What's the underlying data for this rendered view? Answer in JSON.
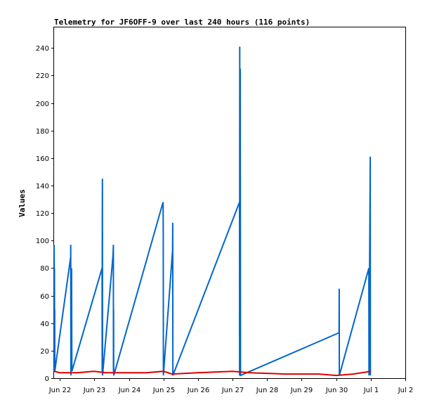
{
  "chart_data": {
    "type": "line",
    "title": "Telemetry for JF6OFF-9 over last 240 hours (116 points)",
    "xlabel": "",
    "ylabel": "Values",
    "xlim": [
      "2024-06-21T20:00",
      "2024-07-02T00:00"
    ],
    "ylim": [
      0,
      255
    ],
    "x_ticks": [
      {
        "label": "Jun 22",
        "t": "2024-06-22T00:00"
      },
      {
        "label": "Jun 23",
        "t": "2024-06-23T00:00"
      },
      {
        "label": "Jun 24",
        "t": "2024-06-24T00:00"
      },
      {
        "label": "Jun 25",
        "t": "2024-06-25T00:00"
      },
      {
        "label": "Jun 26",
        "t": "2024-06-26T00:00"
      },
      {
        "label": "Jun 27",
        "t": "2024-06-27T00:00"
      },
      {
        "label": "Jun 28",
        "t": "2024-06-28T00:00"
      },
      {
        "label": "Jun 29",
        "t": "2024-06-29T00:00"
      },
      {
        "label": "Jun 30",
        "t": "2024-06-30T00:00"
      },
      {
        "label": "Jul 1",
        "t": "2024-07-01T00:00"
      },
      {
        "label": "Jul 2",
        "t": "2024-07-02T00:00"
      }
    ],
    "y_ticks": [
      0,
      20,
      40,
      60,
      80,
      100,
      120,
      140,
      160,
      180,
      200,
      220,
      240
    ],
    "grid": false,
    "series": [
      {
        "color": "#0066cc",
        "points": [
          [
            "2024-06-21T20:00",
            97
          ],
          [
            "2024-06-21T20:05",
            80
          ],
          [
            "2024-06-21T20:10",
            5
          ],
          [
            "2024-06-21T20:15",
            80
          ],
          [
            "2024-06-21T20:20",
            5
          ],
          [
            "2024-06-21T20:25",
            50
          ],
          [
            "2024-06-21T20:30",
            5
          ],
          [
            "2024-06-22T07:30",
            88
          ],
          [
            "2024-06-22T07:35",
            97
          ],
          [
            "2024-06-22T07:40",
            2
          ],
          [
            "2024-06-22T08:10",
            80
          ],
          [
            "2024-06-22T08:20",
            5
          ],
          [
            "2024-06-23T05:20",
            80
          ],
          [
            "2024-06-23T05:25",
            5
          ],
          [
            "2024-06-23T05:30",
            112
          ],
          [
            "2024-06-23T05:35",
            145
          ],
          [
            "2024-06-23T05:40",
            2
          ],
          [
            "2024-06-23T13:00",
            90
          ],
          [
            "2024-06-23T13:10",
            97
          ],
          [
            "2024-06-23T13:15",
            5
          ],
          [
            "2024-06-23T13:20",
            50
          ],
          [
            "2024-06-23T13:25",
            2
          ],
          [
            "2024-06-24T23:45",
            128
          ],
          [
            "2024-06-24T23:50",
            105
          ],
          [
            "2024-06-24T23:55",
            2
          ],
          [
            "2024-06-25T06:20",
            93
          ],
          [
            "2024-06-25T06:25",
            113
          ],
          [
            "2024-06-25T06:30",
            2
          ],
          [
            "2024-06-27T04:50",
            128
          ],
          [
            "2024-06-27T04:52",
            2
          ],
          [
            "2024-06-27T05:00",
            241
          ],
          [
            "2024-06-27T05:05",
            2
          ],
          [
            "2024-06-27T05:10",
            112
          ],
          [
            "2024-06-27T05:15",
            2
          ],
          [
            "2024-06-27T05:20",
            225
          ],
          [
            "2024-06-27T05:30",
            2
          ],
          [
            "2024-06-30T02:00",
            33
          ],
          [
            "2024-06-30T02:05",
            65
          ],
          [
            "2024-06-30T02:10",
            2
          ],
          [
            "2024-06-30T22:40",
            80
          ],
          [
            "2024-06-30T22:45",
            2
          ],
          [
            "2024-06-30T23:40",
            161
          ],
          [
            "2024-06-30T23:45",
            2
          ]
        ]
      },
      {
        "color": "#dd0000",
        "points": [
          [
            "2024-06-21T20:00",
            5
          ],
          [
            "2024-06-22T00:00",
            4
          ],
          [
            "2024-06-22T12:00",
            4
          ],
          [
            "2024-06-23T00:00",
            5
          ],
          [
            "2024-06-23T08:00",
            4
          ],
          [
            "2024-06-24T00:00",
            4
          ],
          [
            "2024-06-24T12:00",
            4
          ],
          [
            "2024-06-25T00:00",
            5
          ],
          [
            "2024-06-25T06:00",
            3
          ],
          [
            "2024-06-26T00:00",
            4
          ],
          [
            "2024-06-27T00:00",
            5
          ],
          [
            "2024-06-27T12:00",
            4
          ],
          [
            "2024-06-28T12:00",
            3
          ],
          [
            "2024-06-29T12:00",
            3
          ],
          [
            "2024-06-30T00:00",
            2
          ],
          [
            "2024-06-30T12:00",
            3
          ],
          [
            "2024-07-01T00:00",
            5
          ]
        ]
      }
    ]
  }
}
